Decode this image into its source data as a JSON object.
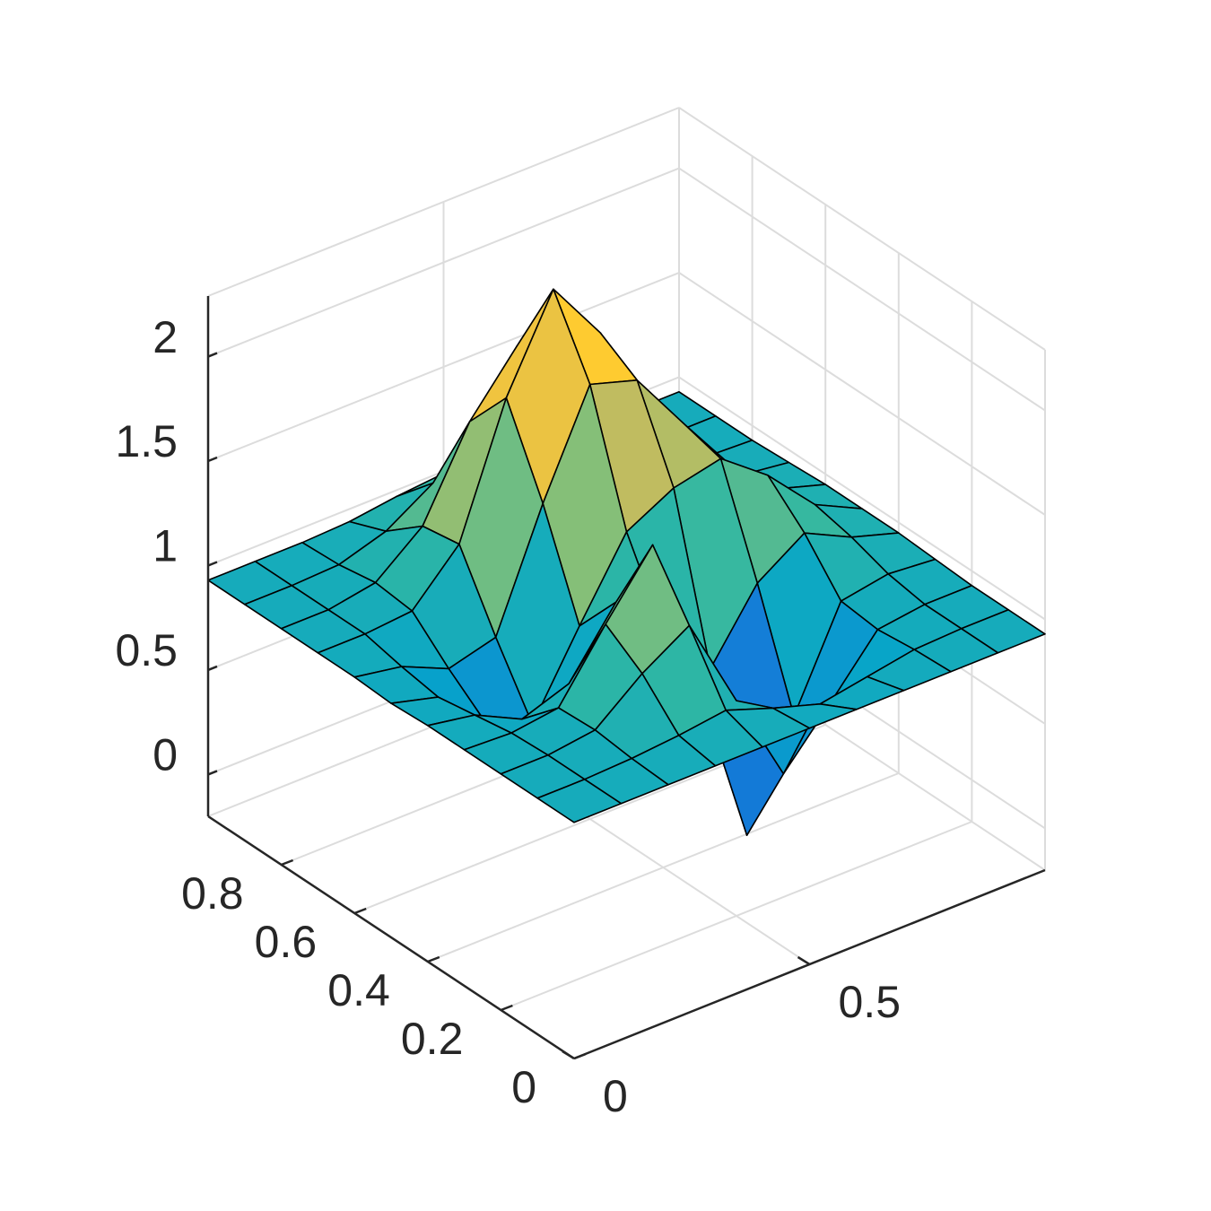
{
  "chart_data": {
    "type": "surface",
    "x": [
      0,
      0.1,
      0.2,
      0.3,
      0.4,
      0.5,
      0.6,
      0.7,
      0.8,
      0.9,
      1
    ],
    "y": [
      0,
      0.1,
      0.2,
      0.3,
      0.4,
      0.5,
      0.6,
      0.7,
      0.8,
      0.9,
      1
    ],
    "z": [
      [
        0.93,
        0.93,
        0.93,
        0.93,
        0.93,
        0.93,
        0.93,
        0.93,
        0.93,
        0.93,
        0.93
      ],
      [
        0.93,
        0.93,
        0.94,
        0.96,
        0.99,
        0.91,
        0.84,
        0.88,
        0.92,
        0.93,
        0.93
      ],
      [
        0.93,
        0.93,
        0.96,
        1.14,
        1.28,
        0.83,
        0.39,
        0.64,
        0.9,
        0.93,
        0.93
      ],
      [
        0.93,
        0.92,
        0.95,
        1.26,
        1.55,
        0.76,
        -0.02,
        0.46,
        0.92,
        0.96,
        0.94
      ],
      [
        0.93,
        0.89,
        0.78,
        0.86,
        1.16,
        0.93,
        0.66,
        0.98,
        1.13,
        1.02,
        0.95
      ],
      [
        0.92,
        0.86,
        0.65,
        0.55,
        0.93,
        1.29,
        1.41,
        1.46,
        1.29,
        1.06,
        0.95
      ],
      [
        0.93,
        0.89,
        0.79,
        0.85,
        1.4,
        1.88,
        1.81,
        1.51,
        1.22,
        1.02,
        0.95
      ],
      [
        0.93,
        0.93,
        0.95,
        1.18,
        1.79,
        2.22,
        1.92,
        1.37,
        1.07,
        0.97,
        0.94
      ],
      [
        0.93,
        0.93,
        0.97,
        1.15,
        1.56,
        1.83,
        1.58,
        1.18,
        0.99,
        0.94,
        0.93
      ],
      [
        0.93,
        0.93,
        0.94,
        1.01,
        1.15,
        1.25,
        1.15,
        1.01,
        0.94,
        0.93,
        0.93
      ],
      [
        0.93,
        0.93,
        0.93,
        0.94,
        0.97,
        0.99,
        0.97,
        0.94,
        0.93,
        0.93,
        0.93
      ]
    ],
    "xlim": [
      0,
      1
    ],
    "ylim": [
      0,
      1
    ],
    "zlim": [
      -0.2,
      2.29
    ],
    "xticks": [
      0,
      0.5
    ],
    "yticks": [
      0,
      0.2,
      0.4,
      0.6,
      0.8
    ],
    "zticks": [
      0,
      0.5,
      1,
      1.5,
      2
    ],
    "grid": true,
    "edge_color": "#000000",
    "colormap": [
      "#352a87",
      "#0f5cdd",
      "#1481d6",
      "#06a4ca",
      "#2eb7a4",
      "#87bf77",
      "#d1bb59",
      "#fec832",
      "#f9fb0e"
    ]
  }
}
